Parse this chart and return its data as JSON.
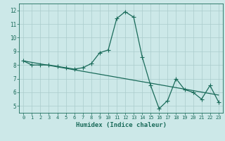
{
  "xlabel": "Humidex (Indice chaleur)",
  "background_color": "#cce8e8",
  "grid_color": "#aacccc",
  "line_color": "#1a6b5a",
  "xlim": [
    -0.5,
    23.5
  ],
  "ylim": [
    4.5,
    12.5
  ],
  "xticks": [
    0,
    1,
    2,
    3,
    4,
    5,
    6,
    7,
    8,
    9,
    10,
    11,
    12,
    13,
    14,
    15,
    16,
    17,
    18,
    19,
    20,
    21,
    22,
    23
  ],
  "yticks": [
    5,
    6,
    7,
    8,
    9,
    10,
    11,
    12
  ],
  "series1_x": [
    0,
    1,
    2,
    3,
    4,
    5,
    6,
    7,
    8,
    9,
    10,
    11,
    12,
    13,
    14,
    15,
    16,
    17,
    18,
    19,
    20,
    21,
    22,
    23
  ],
  "series1_y": [
    8.3,
    8.0,
    8.0,
    8.0,
    7.9,
    7.8,
    7.7,
    7.8,
    8.1,
    8.9,
    9.1,
    11.4,
    11.9,
    11.5,
    8.6,
    6.5,
    4.8,
    5.4,
    7.0,
    6.2,
    6.0,
    5.5,
    6.5,
    5.3
  ],
  "series2_x": [
    0,
    23
  ],
  "series2_y": [
    8.3,
    5.8
  ],
  "linewidth": 0.9,
  "markersize": 4
}
